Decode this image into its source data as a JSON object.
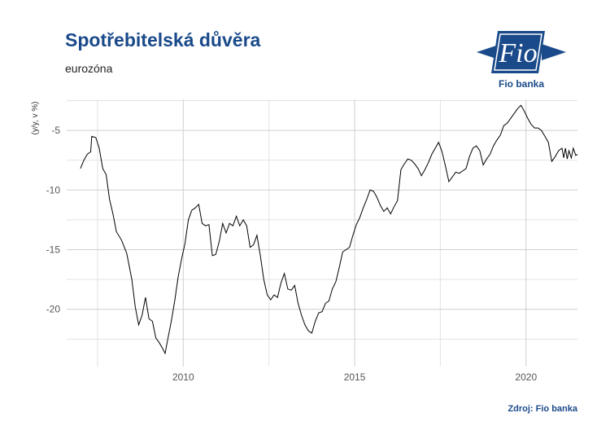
{
  "title": "Spotřebitelská důvěra",
  "subtitle": "eurozóna",
  "source": "Zdroj: Fio banka",
  "logo": {
    "mark_text": "Fio",
    "name": "Fio banka",
    "color": "#1a4a8a"
  },
  "chart_data": {
    "type": "line",
    "title": "Spotřebitelská důvěra",
    "subtitle": "eurozóna",
    "ylabel": "(y/y, v %)",
    "xlabel": "",
    "xlim": [
      2006.6,
      2021.5
    ],
    "ylim": [
      -24.8,
      -2.4
    ],
    "x_ticks": [
      2010,
      2015,
      2020
    ],
    "y_ticks": [
      -5,
      -10,
      -15,
      -20
    ],
    "grid": true,
    "line_color": "#000000",
    "series": [
      {
        "values": [
          [
            2007.0,
            -8.2
          ],
          [
            2007.1,
            -7.5
          ],
          [
            2007.2,
            -7.0
          ],
          [
            2007.3,
            -6.8
          ],
          [
            2007.33,
            -5.5
          ],
          [
            2007.45,
            -5.6
          ],
          [
            2007.55,
            -6.5
          ],
          [
            2007.65,
            -8.2
          ],
          [
            2007.75,
            -8.7
          ],
          [
            2007.85,
            -10.8
          ],
          [
            2007.95,
            -12.0
          ],
          [
            2008.05,
            -13.5
          ],
          [
            2008.2,
            -14.2
          ],
          [
            2008.35,
            -15.3
          ],
          [
            2008.5,
            -17.5
          ],
          [
            2008.6,
            -19.8
          ],
          [
            2008.7,
            -21.3
          ],
          [
            2008.8,
            -20.5
          ],
          [
            2008.9,
            -19.0
          ],
          [
            2009.0,
            -20.8
          ],
          [
            2009.1,
            -21.0
          ],
          [
            2009.2,
            -22.4
          ],
          [
            2009.3,
            -22.8
          ],
          [
            2009.4,
            -23.3
          ],
          [
            2009.47,
            -23.7
          ],
          [
            2009.55,
            -22.5
          ],
          [
            2009.65,
            -21.0
          ],
          [
            2009.75,
            -19.3
          ],
          [
            2009.85,
            -17.3
          ],
          [
            2009.95,
            -15.8
          ],
          [
            2010.05,
            -14.5
          ],
          [
            2010.15,
            -12.5
          ],
          [
            2010.25,
            -11.7
          ],
          [
            2010.35,
            -11.5
          ],
          [
            2010.45,
            -11.2
          ],
          [
            2010.55,
            -12.8
          ],
          [
            2010.65,
            -13.0
          ],
          [
            2010.75,
            -12.9
          ],
          [
            2010.85,
            -15.5
          ],
          [
            2010.95,
            -15.4
          ],
          [
            2011.05,
            -14.3
          ],
          [
            2011.15,
            -12.8
          ],
          [
            2011.25,
            -13.6
          ],
          [
            2011.35,
            -12.8
          ],
          [
            2011.45,
            -13.0
          ],
          [
            2011.55,
            -12.2
          ],
          [
            2011.65,
            -13.0
          ],
          [
            2011.75,
            -12.5
          ],
          [
            2011.85,
            -13.0
          ],
          [
            2011.95,
            -14.8
          ],
          [
            2012.05,
            -14.6
          ],
          [
            2012.15,
            -13.8
          ],
          [
            2012.25,
            -15.5
          ],
          [
            2012.35,
            -17.5
          ],
          [
            2012.45,
            -18.8
          ],
          [
            2012.55,
            -19.2
          ],
          [
            2012.65,
            -18.8
          ],
          [
            2012.75,
            -19.0
          ],
          [
            2012.85,
            -17.8
          ],
          [
            2012.95,
            -17.0
          ],
          [
            2013.05,
            -18.3
          ],
          [
            2013.15,
            -18.4
          ],
          [
            2013.25,
            -18.0
          ],
          [
            2013.35,
            -19.5
          ],
          [
            2013.45,
            -20.5
          ],
          [
            2013.55,
            -21.3
          ],
          [
            2013.65,
            -21.8
          ],
          [
            2013.75,
            -22.0
          ],
          [
            2013.85,
            -21.0
          ],
          [
            2013.95,
            -20.3
          ],
          [
            2014.05,
            -20.2
          ],
          [
            2014.15,
            -19.5
          ],
          [
            2014.25,
            -19.3
          ],
          [
            2014.35,
            -18.3
          ],
          [
            2014.45,
            -17.7
          ],
          [
            2014.55,
            -16.5
          ],
          [
            2014.65,
            -15.2
          ],
          [
            2014.75,
            -15.0
          ],
          [
            2014.85,
            -14.8
          ],
          [
            2014.95,
            -13.8
          ],
          [
            2015.05,
            -12.9
          ],
          [
            2015.15,
            -12.3
          ],
          [
            2015.25,
            -11.5
          ],
          [
            2015.35,
            -10.8
          ],
          [
            2015.45,
            -10.0
          ],
          [
            2015.55,
            -10.1
          ],
          [
            2015.65,
            -10.6
          ],
          [
            2015.75,
            -11.3
          ],
          [
            2015.85,
            -11.8
          ],
          [
            2015.95,
            -11.5
          ],
          [
            2016.05,
            -12.0
          ],
          [
            2016.15,
            -11.4
          ],
          [
            2016.25,
            -10.9
          ],
          [
            2016.35,
            -8.3
          ],
          [
            2016.45,
            -7.8
          ],
          [
            2016.55,
            -7.4
          ],
          [
            2016.65,
            -7.5
          ],
          [
            2016.75,
            -7.8
          ],
          [
            2016.85,
            -8.2
          ],
          [
            2016.95,
            -8.8
          ],
          [
            2017.05,
            -8.3
          ],
          [
            2017.15,
            -7.7
          ],
          [
            2017.25,
            -7.0
          ],
          [
            2017.35,
            -6.5
          ],
          [
            2017.45,
            -6.0
          ],
          [
            2017.55,
            -6.8
          ],
          [
            2017.65,
            -8.0
          ],
          [
            2017.75,
            -9.3
          ],
          [
            2017.85,
            -8.9
          ],
          [
            2017.95,
            -8.5
          ],
          [
            2018.05,
            -8.6
          ],
          [
            2018.15,
            -8.4
          ],
          [
            2018.25,
            -8.2
          ],
          [
            2018.35,
            -7.2
          ],
          [
            2018.45,
            -6.5
          ],
          [
            2018.55,
            -6.3
          ],
          [
            2018.65,
            -6.7
          ],
          [
            2018.75,
            -7.9
          ],
          [
            2018.85,
            -7.4
          ],
          [
            2018.95,
            -7.0
          ],
          [
            2019.05,
            -6.3
          ],
          [
            2019.15,
            -5.8
          ],
          [
            2019.25,
            -5.4
          ],
          [
            2019.35,
            -4.6
          ],
          [
            2019.45,
            -4.4
          ],
          [
            2019.55,
            -4.0
          ],
          [
            2019.65,
            -3.6
          ],
          [
            2019.75,
            -3.2
          ],
          [
            2019.85,
            -2.9
          ],
          [
            2019.95,
            -3.4
          ],
          [
            2020.05,
            -4.0
          ],
          [
            2020.15,
            -4.5
          ],
          [
            2020.25,
            -4.8
          ],
          [
            2020.35,
            -4.8
          ],
          [
            2020.45,
            -5.0
          ],
          [
            2020.55,
            -5.5
          ],
          [
            2020.65,
            -6.0
          ],
          [
            2020.75,
            -7.6
          ],
          [
            2020.85,
            -7.2
          ],
          [
            2020.95,
            -6.7
          ],
          [
            2021.05,
            -6.5
          ],
          [
            2021.1,
            -7.3
          ],
          [
            2021.15,
            -6.5
          ],
          [
            2021.2,
            -7.4
          ],
          [
            2021.25,
            -6.7
          ],
          [
            2021.32,
            -7.3
          ],
          [
            2021.38,
            -6.5
          ],
          [
            2021.45,
            -7.1
          ],
          [
            2021.5,
            -7.0
          ]
        ]
      }
    ]
  }
}
